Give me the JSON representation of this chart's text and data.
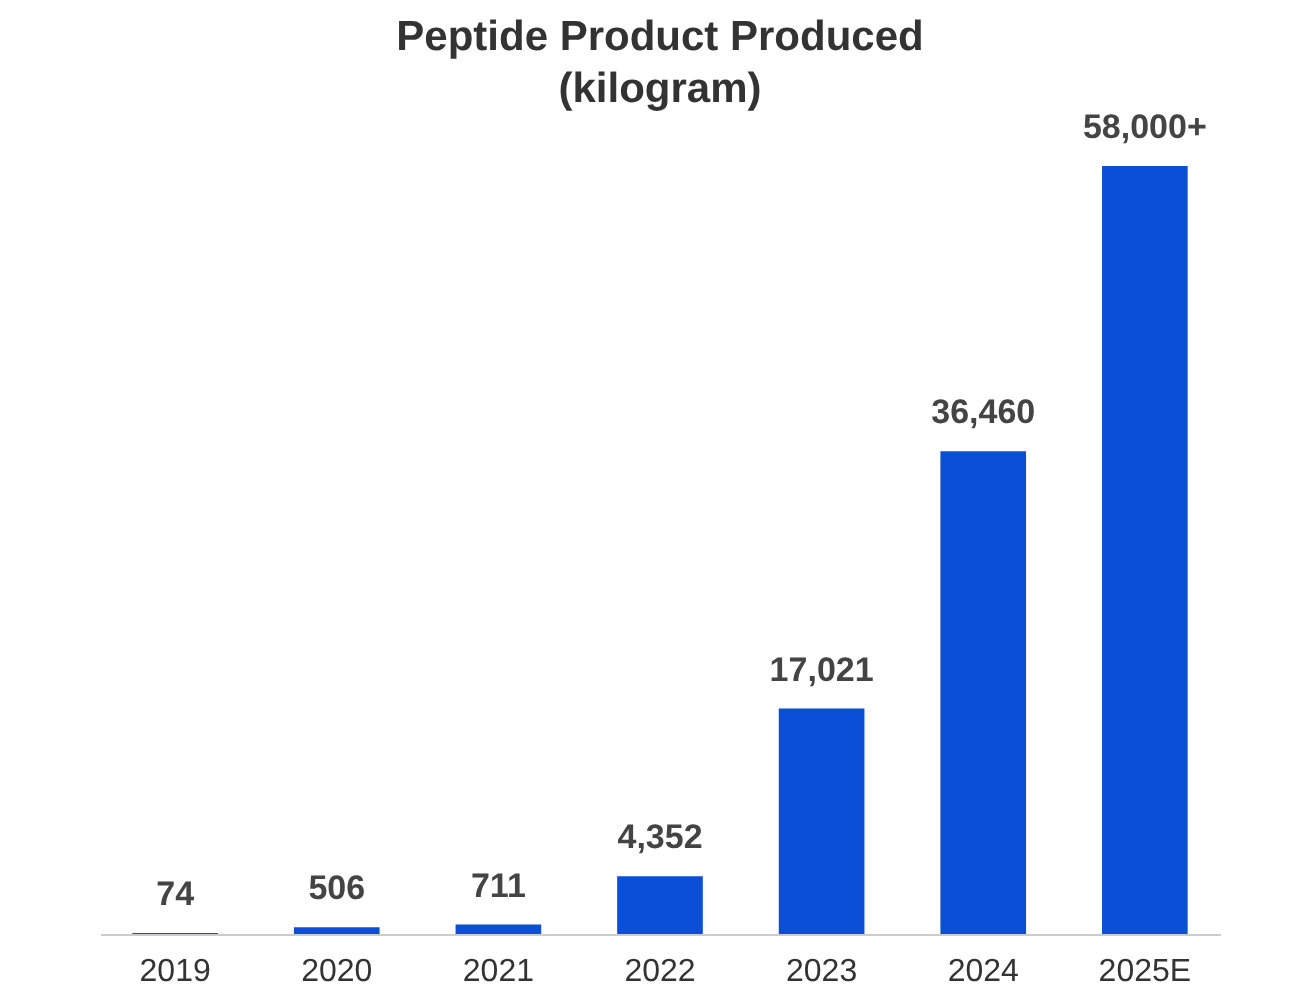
{
  "chart_data": {
    "type": "bar",
    "title": [
      "Peptide Product Produced",
      "(kilogram)"
    ],
    "categories": [
      "2019",
      "2020",
      "2021",
      "2022",
      "2023",
      "2024",
      "2025E"
    ],
    "values": [
      74,
      506,
      711,
      4352,
      17021,
      36460,
      58000
    ],
    "value_labels": [
      "74",
      "506",
      "711",
      "4,352",
      "17,021",
      "36,460",
      "58,000+"
    ],
    "color": "#0a4fd6"
  }
}
